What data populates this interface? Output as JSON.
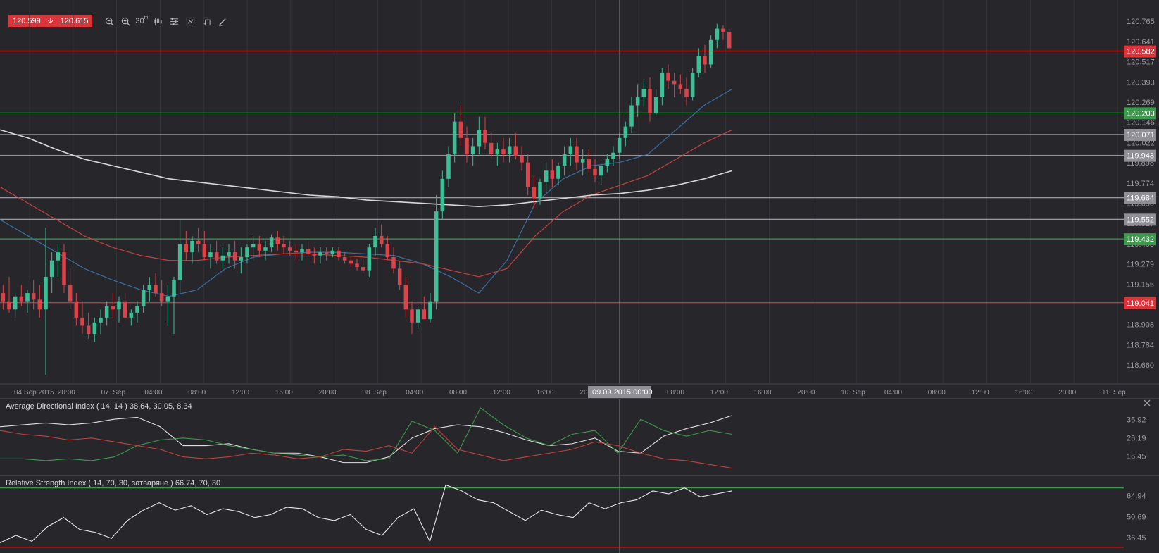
{
  "toolbar": {
    "bid": "120.599",
    "ask": "120.615",
    "timeframe": "30",
    "timeframe_unit": "m",
    "icons": [
      "zoom-out-icon",
      "zoom-in-icon",
      "timeframe-icon",
      "chart-type-icon",
      "indicators-icon",
      "drawing-tools-icon",
      "templates-icon",
      "pencil-icon"
    ]
  },
  "colors": {
    "background": "#26262b",
    "grid": "#34343a",
    "up_candle": "#3dbf95",
    "down_candle": "#d9434a",
    "red_line": "#d9353b",
    "green_line": "#3d9a4d",
    "white_line": "#a8a8ae",
    "ma_fast": "#3b6fa3",
    "ma_mid": "#c0433f",
    "ma_slow": "#d8d8d8"
  },
  "chart_data": [
    {
      "type": "candlestick",
      "price_axis_labels": [
        "120.765",
        "120.641",
        "120.517",
        "120.393",
        "120.269",
        "120.146",
        "120.022",
        "119.898",
        "119.774",
        "119.650",
        "119.527",
        "119.403",
        "119.279",
        "119.155",
        "119.031",
        "118.908",
        "118.784",
        "118.660"
      ],
      "level_lines": [
        {
          "value": 120.582,
          "label": "120.582",
          "color": "red"
        },
        {
          "value": 120.203,
          "label": "120.203",
          "color": "green"
        },
        {
          "value": 120.071,
          "label": "120.071",
          "color": "white"
        },
        {
          "value": 119.943,
          "label": "119.943",
          "color": "white"
        },
        {
          "value": 119.684,
          "label": "119.684",
          "color": "white"
        },
        {
          "value": 119.552,
          "label": "119.552",
          "color": "white"
        },
        {
          "value": 119.432,
          "label": "119.432",
          "color": "green"
        },
        {
          "value": 119.041,
          "label": "119.041",
          "color": "red"
        }
      ],
      "ylim": [
        118.6,
        120.8
      ],
      "time_axis_labels": [
        "04 Sep 2015",
        "20:00",
        "07. Sep",
        "04:00",
        "08:00",
        "12:00",
        "16:00",
        "20:00",
        "08. Sep",
        "04:00",
        "08:00",
        "12:00",
        "16:00",
        "20:00",
        "04:00",
        "08:00",
        "12:00",
        "16:00",
        "20:00",
        "10. Sep",
        "04:00",
        "08:00",
        "12:00",
        "16:00",
        "20:00",
        "11. Sep"
      ],
      "crosshair_label": "09.09.2015 00:00",
      "candles_ohlc": [
        [
          119.1,
          119.15,
          119.0,
          119.05
        ],
        [
          119.05,
          119.2,
          118.98,
          119.0
        ],
        [
          119.0,
          119.1,
          118.95,
          119.08
        ],
        [
          119.08,
          119.15,
          119.02,
          119.05
        ],
        [
          119.05,
          119.12,
          118.98,
          119.1
        ],
        [
          119.1,
          119.18,
          119.0,
          119.06
        ],
        [
          119.06,
          119.15,
          118.95,
          119.0
        ],
        [
          119.0,
          119.5,
          118.6,
          119.2
        ],
        [
          119.2,
          119.35,
          119.1,
          119.3
        ],
        [
          119.3,
          119.4,
          119.2,
          119.35
        ],
        [
          119.35,
          119.4,
          119.1,
          119.15
        ],
        [
          119.15,
          119.25,
          119.0,
          119.05
        ],
        [
          119.05,
          119.1,
          118.9,
          118.95
        ],
        [
          118.95,
          119.05,
          118.85,
          118.9
        ],
        [
          118.9,
          118.98,
          118.82,
          118.85
        ],
        [
          118.85,
          118.95,
          118.8,
          118.92
        ],
        [
          118.92,
          119.0,
          118.85,
          118.95
        ],
        [
          118.95,
          119.05,
          118.9,
          119.02
        ],
        [
          119.02,
          119.1,
          118.95,
          119.0
        ],
        [
          119.0,
          119.08,
          118.92,
          119.05
        ],
        [
          119.05,
          119.1,
          118.98,
          118.95
        ],
        [
          118.95,
          119.0,
          118.9,
          118.98
        ],
        [
          118.98,
          119.05,
          118.92,
          119.02
        ],
        [
          119.02,
          119.15,
          118.98,
          119.12
        ],
        [
          119.12,
          119.2,
          119.05,
          119.15
        ],
        [
          119.15,
          119.22,
          119.08,
          119.1
        ],
        [
          119.1,
          119.18,
          119.02,
          119.05
        ],
        [
          119.05,
          119.15,
          118.9,
          119.08
        ],
        [
          119.08,
          119.2,
          118.85,
          119.18
        ],
        [
          119.18,
          119.55,
          119.1,
          119.4
        ],
        [
          119.4,
          119.48,
          119.3,
          119.35
        ],
        [
          119.35,
          119.45,
          119.28,
          119.42
        ],
        [
          119.42,
          119.5,
          119.35,
          119.4
        ],
        [
          119.4,
          119.48,
          119.3,
          119.32
        ],
        [
          119.32,
          119.4,
          119.25,
          119.35
        ],
        [
          119.35,
          119.42,
          119.28,
          119.3
        ],
        [
          119.3,
          119.38,
          119.25,
          119.33
        ],
        [
          119.33,
          119.4,
          119.28,
          119.35
        ],
        [
          119.35,
          119.42,
          119.25,
          119.3
        ],
        [
          119.3,
          119.38,
          119.22,
          119.32
        ],
        [
          119.32,
          119.4,
          119.28,
          119.38
        ],
        [
          119.38,
          119.45,
          119.3,
          119.4
        ],
        [
          119.4,
          119.45,
          119.32,
          119.36
        ],
        [
          119.36,
          119.42,
          119.3,
          119.38
        ],
        [
          119.38,
          119.46,
          119.35,
          119.44
        ],
        [
          119.44,
          119.48,
          119.36,
          119.4
        ],
        [
          119.4,
          119.45,
          119.34,
          119.38
        ],
        [
          119.38,
          119.42,
          119.33,
          119.36
        ],
        [
          119.36,
          119.4,
          119.3,
          119.35
        ],
        [
          119.35,
          119.4,
          119.3,
          119.37
        ],
        [
          119.37,
          119.42,
          119.32,
          119.34
        ],
        [
          119.34,
          119.38,
          119.28,
          119.33
        ],
        [
          119.33,
          119.38,
          119.28,
          119.35
        ],
        [
          119.35,
          119.38,
          119.3,
          119.34
        ],
        [
          119.34,
          119.38,
          119.32,
          119.36
        ],
        [
          119.36,
          119.38,
          119.3,
          119.32
        ],
        [
          119.32,
          119.35,
          119.28,
          119.3
        ],
        [
          119.3,
          119.33,
          119.26,
          119.28
        ],
        [
          119.28,
          119.31,
          119.24,
          119.26
        ],
        [
          119.26,
          119.3,
          119.22,
          119.24
        ],
        [
          119.24,
          119.4,
          119.2,
          119.38
        ],
        [
          119.38,
          119.5,
          119.33,
          119.45
        ],
        [
          119.45,
          119.52,
          119.38,
          119.4
        ],
        [
          119.4,
          119.45,
          119.3,
          119.32
        ],
        [
          119.32,
          119.38,
          119.22,
          119.25
        ],
        [
          119.25,
          119.3,
          119.12,
          119.15
        ],
        [
          119.15,
          119.2,
          118.95,
          119.0
        ],
        [
          119.0,
          119.05,
          118.85,
          118.92
        ],
        [
          118.92,
          119.02,
          118.88,
          119.0
        ],
        [
          119.0,
          119.08,
          118.95,
          118.94
        ],
        [
          118.94,
          119.1,
          118.92,
          119.05
        ],
        [
          119.05,
          119.7,
          119.0,
          119.6
        ],
        [
          119.6,
          119.85,
          119.55,
          119.8
        ],
        [
          119.8,
          120.0,
          119.75,
          119.95
        ],
        [
          119.95,
          120.2,
          119.9,
          120.15
        ],
        [
          120.15,
          120.25,
          120.0,
          120.05
        ],
        [
          120.05,
          120.12,
          119.9,
          119.95
        ],
        [
          119.95,
          120.05,
          119.88,
          120.0
        ],
        [
          120.0,
          120.18,
          119.95,
          120.1
        ],
        [
          120.1,
          120.18,
          119.98,
          120.02
        ],
        [
          120.02,
          120.08,
          119.92,
          119.95
        ],
        [
          119.95,
          120.02,
          119.88,
          119.98
        ],
        [
          119.98,
          120.05,
          119.9,
          119.95
        ],
        [
          119.95,
          120.05,
          119.9,
          120.0
        ],
        [
          120.0,
          120.08,
          119.92,
          119.94
        ],
        [
          119.94,
          120.0,
          119.85,
          119.9
        ],
        [
          119.9,
          119.95,
          119.7,
          119.75
        ],
        [
          119.75,
          119.82,
          119.62,
          119.68
        ],
        [
          119.68,
          119.8,
          119.64,
          119.78
        ],
        [
          119.78,
          119.9,
          119.72,
          119.85
        ],
        [
          119.85,
          119.92,
          119.75,
          119.8
        ],
        [
          119.8,
          119.9,
          119.76,
          119.88
        ],
        [
          119.88,
          120.0,
          119.82,
          119.95
        ],
        [
          119.95,
          120.05,
          119.88,
          120.0
        ],
        [
          120.0,
          120.05,
          119.85,
          119.9
        ],
        [
          119.9,
          119.98,
          119.82,
          119.92
        ],
        [
          119.92,
          119.98,
          119.84,
          119.86
        ],
        [
          119.86,
          119.92,
          119.78,
          119.82
        ],
        [
          119.82,
          119.9,
          119.76,
          119.88
        ],
        [
          119.88,
          119.95,
          119.84,
          119.92
        ],
        [
          119.92,
          120.0,
          119.88,
          119.96
        ],
        [
          119.96,
          120.08,
          119.92,
          120.05
        ],
        [
          120.05,
          120.15,
          120.0,
          120.12
        ],
        [
          120.12,
          120.3,
          120.08,
          120.25
        ],
        [
          120.25,
          120.38,
          120.18,
          120.3
        ],
        [
          120.3,
          120.4,
          120.24,
          120.35
        ],
        [
          120.35,
          120.42,
          120.15,
          120.2
        ],
        [
          120.2,
          120.35,
          120.18,
          120.3
        ],
        [
          120.3,
          120.48,
          120.25,
          120.45
        ],
        [
          120.45,
          120.5,
          120.35,
          120.4
        ],
        [
          120.4,
          120.45,
          120.3,
          120.38
        ],
        [
          120.38,
          120.44,
          120.32,
          120.35
        ],
        [
          120.35,
          120.42,
          120.25,
          120.3
        ],
        [
          120.3,
          120.48,
          120.28,
          120.45
        ],
        [
          120.45,
          120.6,
          120.42,
          120.55
        ],
        [
          120.55,
          120.62,
          120.45,
          120.5
        ],
        [
          120.5,
          120.68,
          120.48,
          120.65
        ],
        [
          120.65,
          120.75,
          120.6,
          120.72
        ],
        [
          120.72,
          120.74,
          120.65,
          120.7
        ],
        [
          120.7,
          120.72,
          120.58,
          120.6
        ]
      ],
      "moving_averages": [
        {
          "name": "fast",
          "points": [
            119.55,
            119.45,
            119.35,
            119.25,
            119.18,
            119.12,
            119.08,
            119.12,
            119.25,
            119.32,
            119.34,
            119.35,
            119.35,
            119.34,
            119.33,
            119.28,
            119.2,
            119.1,
            119.3,
            119.65,
            119.8,
            119.88,
            119.9,
            119.95,
            120.1,
            120.25,
            120.35
          ]
        },
        {
          "name": "mid",
          "points": [
            119.75,
            119.65,
            119.55,
            119.45,
            119.38,
            119.33,
            119.3,
            119.3,
            119.32,
            119.33,
            119.34,
            119.34,
            119.33,
            119.32,
            119.3,
            119.28,
            119.24,
            119.2,
            119.25,
            119.45,
            119.6,
            119.7,
            119.76,
            119.82,
            119.92,
            120.02,
            120.1
          ]
        },
        {
          "name": "slow",
          "points": [
            120.1,
            120.05,
            119.98,
            119.92,
            119.88,
            119.84,
            119.8,
            119.78,
            119.76,
            119.74,
            119.72,
            119.7,
            119.69,
            119.67,
            119.66,
            119.65,
            119.64,
            119.63,
            119.64,
            119.66,
            119.68,
            119.7,
            119.71,
            119.73,
            119.76,
            119.8,
            119.85
          ]
        }
      ]
    },
    {
      "type": "line",
      "title": "Average Directional Index ( 14, 14 ) 38.64, 30.05, 8.34",
      "ylabels": [
        "35.92",
        "26.19",
        "16.45"
      ],
      "ylim": [
        8,
        45
      ],
      "series": [
        {
          "color": "#e0e0e0",
          "values": [
            32,
            33,
            34,
            33,
            34,
            36,
            37,
            32,
            22,
            22,
            23,
            20,
            18,
            18,
            16,
            13,
            13,
            16,
            26,
            31,
            33,
            32,
            29,
            25,
            22,
            23,
            26,
            19,
            18,
            27,
            31,
            34,
            38
          ]
        },
        {
          "color": "#3d9a4d",
          "values": [
            15,
            15,
            14,
            15,
            14,
            16,
            22,
            25,
            26,
            25,
            22,
            20,
            18,
            17,
            16,
            17,
            14,
            15,
            35,
            30,
            18,
            42,
            33,
            26,
            22,
            28,
            30,
            18,
            36,
            30,
            27,
            30,
            28
          ]
        },
        {
          "color": "#c0433f",
          "values": [
            30,
            28,
            27,
            25,
            26,
            24,
            22,
            20,
            16,
            15,
            16,
            18,
            17,
            15,
            16,
            20,
            19,
            22,
            18,
            32,
            20,
            17,
            14,
            16,
            18,
            20,
            24,
            22,
            18,
            15,
            14,
            12,
            10
          ]
        }
      ]
    },
    {
      "type": "line",
      "title": "Relative Strength Index ( 14, 70, 30, затваряне ) 66.74, 70, 30",
      "ylabels": [
        "64.94",
        "50.69",
        "36.45"
      ],
      "ylim": [
        28,
        76
      ],
      "level_lines": [
        70,
        30
      ],
      "series": [
        {
          "color": "#e8e8e8",
          "values": [
            33,
            38,
            34,
            44,
            50,
            42,
            40,
            36,
            48,
            55,
            60,
            55,
            58,
            52,
            56,
            54,
            50,
            52,
            57,
            56,
            50,
            48,
            52,
            42,
            38,
            50,
            56,
            34,
            72,
            68,
            62,
            60,
            54,
            48,
            55,
            52,
            50,
            60,
            56,
            60,
            62,
            68,
            66,
            70,
            64,
            66,
            68
          ]
        }
      ]
    }
  ]
}
